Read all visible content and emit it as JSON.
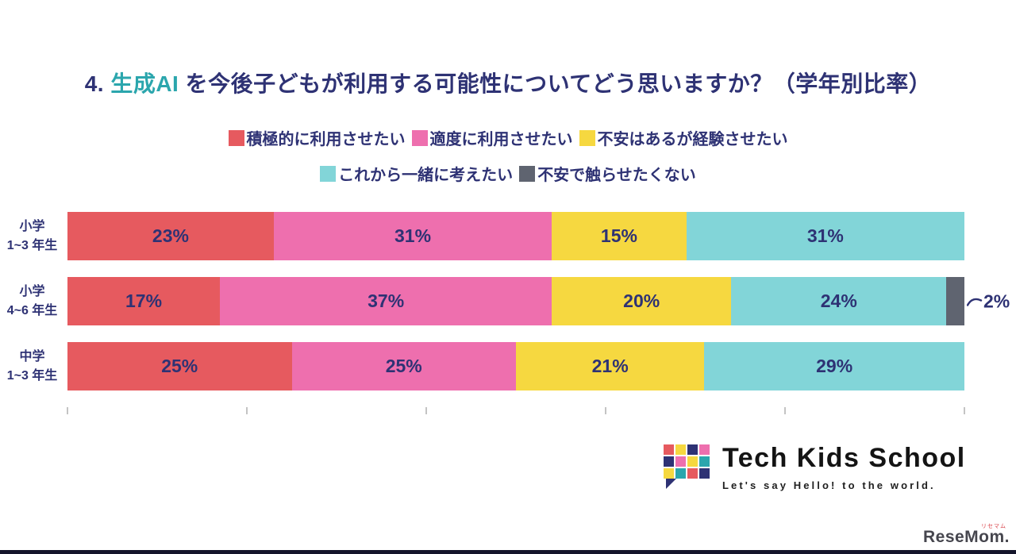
{
  "title": {
    "prefix": "4. ",
    "highlight": "生成AI",
    "rest": " を今後子どもが利用する可能性についてどう思いますか？（学年別比率）"
  },
  "legend": [
    {
      "label": "積極的に利用させたい",
      "color": "#E65A5F"
    },
    {
      "label": "適度に利用させたい",
      "color": "#EE6FAE"
    },
    {
      "label": "不安はあるが経験させたい",
      "color": "#F6D840"
    },
    {
      "label": "これから一緒に考えたい",
      "color": "#82D5D8"
    },
    {
      "label": "不安で触らせたくない",
      "color": "#5F6470"
    }
  ],
  "chart_data": {
    "type": "bar",
    "orientation": "horizontal-stacked",
    "title": "4. 生成AIを今後子どもが利用する可能性についてどう思いますか？（学年別比率）",
    "categories": [
      "小学\n1~3 年生",
      "小学\n4~6 年生",
      "中学\n1~3 年生"
    ],
    "series": [
      {
        "name": "積極的に利用させたい",
        "color": "#E65A5F",
        "values": [
          23,
          17,
          25
        ]
      },
      {
        "name": "適度に利用させたい",
        "color": "#EE6FAE",
        "values": [
          31,
          37,
          25
        ]
      },
      {
        "name": "不安はあるが経験させたい",
        "color": "#F6D840",
        "values": [
          15,
          20,
          21
        ]
      },
      {
        "name": "これから一緒に考えたい",
        "color": "#82D5D8",
        "values": [
          31,
          24,
          29
        ]
      },
      {
        "name": "不安で触らせたくない",
        "color": "#5F6470",
        "values": [
          0,
          2,
          0
        ]
      }
    ],
    "unit": "%",
    "xlim": [
      0,
      100
    ],
    "axis_ticks": [
      0,
      20,
      40,
      60,
      80,
      100
    ],
    "legend_position": "top",
    "grid": false,
    "callout": {
      "row": 1,
      "label": "2%"
    }
  },
  "branding": {
    "logo_text": "Tech Kids School",
    "tagline": "Let's say Hello! to the world.",
    "logo_mosaic": [
      [
        "#E65A5F",
        "#F6D840",
        "#2E3274",
        "#EE6FAE"
      ],
      [
        "#2E3274",
        "#EE6FAE",
        "#F6D840",
        "#2BA6AD"
      ],
      [
        "#F6D840",
        "#2BA6AD",
        "#E65A5F",
        "#2E3274"
      ]
    ]
  },
  "footer": {
    "credit": "ReseMom.",
    "credit_small": "リセマム"
  },
  "colors": {
    "text_navy": "#2E3274",
    "title_highlight": "#2BA6AD",
    "background": "#FFFFFF",
    "bottom_bar": "#14152B"
  }
}
